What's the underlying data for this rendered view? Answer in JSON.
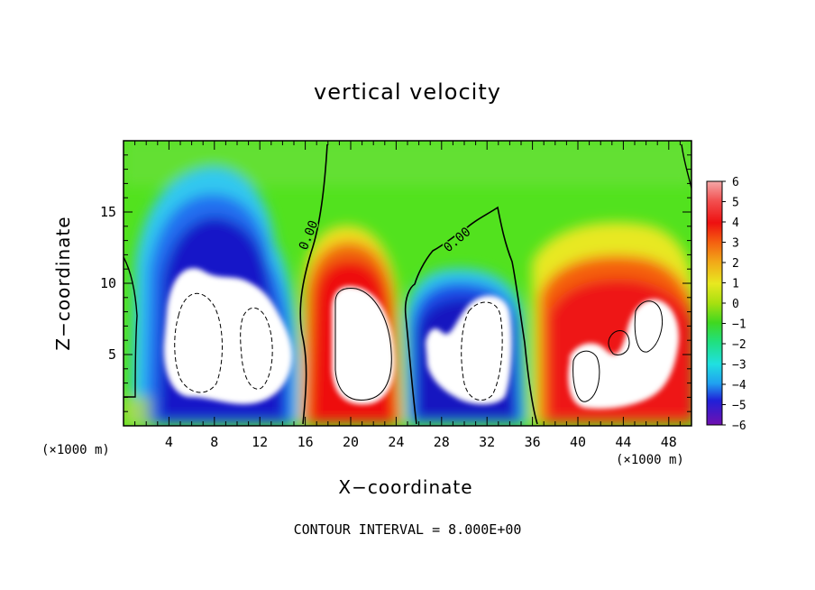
{
  "chart_data": {
    "type": "heatmap",
    "title": "vertical velocity",
    "xlabel": "X−coordinate",
    "ylabel": "Z−coordinate",
    "x_unit_left": "(×1000 m)",
    "x_unit_right": "(×1000 m)",
    "xlim": [
      0,
      50
    ],
    "ylim": [
      0,
      20
    ],
    "x_ticks": [
      4,
      8,
      12,
      16,
      20,
      24,
      28,
      32,
      36,
      40,
      44,
      48
    ],
    "y_ticks": [
      5,
      10,
      15
    ],
    "colorbar": {
      "ticks": [
        "6",
        "5",
        "4",
        "3",
        "2",
        "1",
        "0",
        "−1",
        "−2",
        "−3",
        "−4",
        "−5",
        "−6"
      ],
      "range": [
        -6,
        6
      ]
    },
    "contour_labels": [
      "0.00",
      "0.00"
    ],
    "contour_interval_text": "CONTOUR INTERVAL = 8.000E+00",
    "cells": [
      {
        "x": 8,
        "z": 6,
        "w": -8,
        "note": "downdraft"
      },
      {
        "x": 20.5,
        "z": 6,
        "w": 8,
        "note": "updraft"
      },
      {
        "x": 30,
        "z": 5,
        "w": -8,
        "note": "downdraft"
      },
      {
        "x": 44,
        "z": 5,
        "w": 8,
        "note": "updraft"
      }
    ]
  }
}
